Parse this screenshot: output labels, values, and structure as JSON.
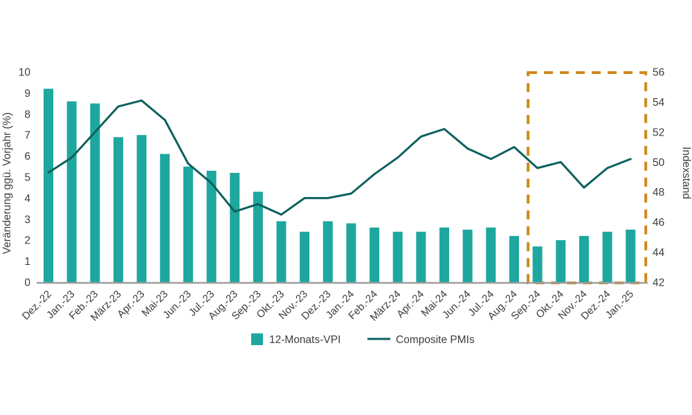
{
  "chart_data": {
    "type": "bar",
    "subtype": "combo-bar-line-dual-axis",
    "title": "",
    "categories": [
      "Dez.-22",
      "Jan.-23",
      "Feb.-23",
      "März-23",
      "Apr.-23",
      "Mai-23",
      "Jun.-23",
      "Jul.-23",
      "Aug.-23",
      "Sep.-23",
      "Okt.-23",
      "Nov.-23",
      "Dez.-23",
      "Jan.-24",
      "Feb.-24",
      "März-24",
      "Apr.-24",
      "Mai-24",
      "Jun.-24",
      "Jul.-24",
      "Aug.-24",
      "Sep.-24",
      "Okt.-24",
      "Nov.-24",
      "Dez.-24",
      "Jan.-25"
    ],
    "series": [
      {
        "name": "12-Monats-VPI",
        "type": "bar",
        "axis": "left",
        "color": "#1ea79f",
        "values": [
          9.2,
          8.6,
          8.5,
          6.9,
          7.0,
          6.1,
          5.5,
          5.3,
          5.2,
          4.3,
          2.9,
          2.4,
          2.9,
          2.8,
          2.6,
          2.4,
          2.4,
          2.6,
          2.5,
          2.6,
          2.2,
          1.7,
          2.0,
          2.2,
          2.4,
          2.5
        ]
      },
      {
        "name": "Composite PMIs",
        "type": "line",
        "axis": "right",
        "color": "#0b605c",
        "values": [
          49.3,
          50.3,
          52.0,
          53.7,
          54.1,
          52.8,
          49.9,
          48.6,
          46.7,
          47.2,
          46.5,
          47.6,
          47.6,
          47.9,
          49.2,
          50.3,
          51.7,
          52.2,
          50.9,
          50.2,
          51.0,
          49.6,
          50.0,
          48.3,
          49.6,
          50.2
        ]
      }
    ],
    "ylabel": "Veränderung ggü. Vorjahr (%)",
    "ylabel_right": "Indexstand",
    "y_left": {
      "min": 0,
      "max": 10,
      "step": 1,
      "ticks": [
        "0",
        "1",
        "2",
        "3",
        "4",
        "5",
        "6",
        "7",
        "8",
        "9",
        "10"
      ]
    },
    "y_right": {
      "min": 42,
      "max": 56,
      "step": 2,
      "ticks": [
        "42",
        "44",
        "46",
        "48",
        "50",
        "52",
        "54",
        "56"
      ]
    },
    "grid": false,
    "legend_position": "bottom-center",
    "legend": [
      "12-Monats-VPI",
      "Composite PMIs"
    ],
    "highlight_box": {
      "from_category": "Sep.-24",
      "to_category": "Jan.-25",
      "from_index": 21,
      "to_index": 25,
      "style": "dashed",
      "color": "#d0881c"
    }
  },
  "colors": {
    "bar": "#1ea79f",
    "line": "#0b605c",
    "highlight": "#d0881c",
    "axis_line": "#9e9e9e",
    "text": "#3c3c3c",
    "background": "#ffffff"
  }
}
